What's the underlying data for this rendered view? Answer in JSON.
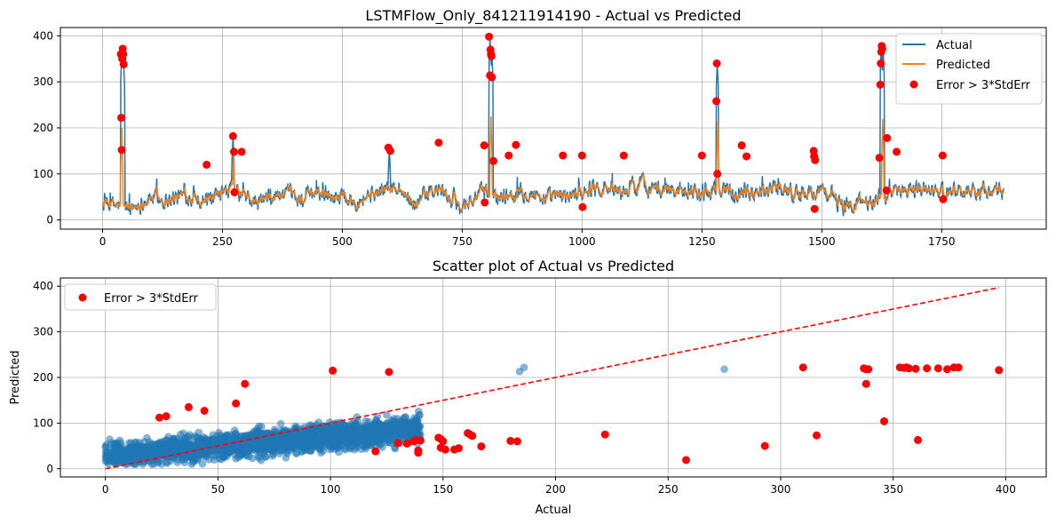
{
  "chart_data": [
    {
      "type": "line",
      "title": "LSTMFlow_Only_841211914190 - Actual vs Predicted",
      "xlabel": "",
      "ylabel": "",
      "xlim": [
        -88,
        1968
      ],
      "ylim": [
        -20,
        418
      ],
      "xticks": [
        0,
        250,
        500,
        750,
        1000,
        1250,
        1500,
        1750
      ],
      "yticks": [
        0,
        100,
        200,
        300,
        400
      ],
      "grid": true,
      "legend_position": "upper right",
      "series": [
        {
          "name": "Actual",
          "color": "#1f77b4"
        },
        {
          "name": "Predicted",
          "color": "#ff7f0e"
        },
        {
          "name": "Error > 3*StdErr",
          "color": "#ff0000",
          "marker": "circle"
        }
      ],
      "series_length": 1880,
      "baseline_segments": [
        [
          0,
          35
        ],
        [
          60,
          25
        ],
        [
          100,
          50
        ],
        [
          140,
          45
        ],
        [
          180,
          55
        ],
        [
          230,
          40
        ],
        [
          270,
          65
        ],
        [
          320,
          35
        ],
        [
          370,
          55
        ],
        [
          410,
          45
        ],
        [
          460,
          60
        ],
        [
          520,
          45
        ],
        [
          560,
          55
        ],
        [
          600,
          70
        ],
        [
          650,
          40
        ],
        [
          700,
          65
        ],
        [
          750,
          30
        ],
        [
          790,
          60
        ],
        [
          830,
          50
        ],
        [
          880,
          65
        ],
        [
          930,
          45
        ],
        [
          980,
          55
        ],
        [
          1030,
          75
        ],
        [
          1080,
          60
        ],
        [
          1120,
          80
        ],
        [
          1170,
          65
        ],
        [
          1220,
          70
        ],
        [
          1260,
          55
        ],
        [
          1300,
          70
        ],
        [
          1350,
          60
        ],
        [
          1400,
          75
        ],
        [
          1450,
          55
        ],
        [
          1500,
          65
        ],
        [
          1550,
          30
        ],
        [
          1600,
          45
        ],
        [
          1650,
          60
        ],
        [
          1700,
          70
        ],
        [
          1750,
          60
        ],
        [
          1800,
          65
        ],
        [
          1880,
          60
        ]
      ],
      "actual_spikes": [
        [
          40,
          360
        ],
        [
          42,
          370
        ],
        [
          44,
          340
        ],
        [
          272,
          180
        ],
        [
          598,
          155
        ],
        [
          808,
          395
        ],
        [
          812,
          360
        ],
        [
          1282,
          340
        ],
        [
          1624,
          375
        ],
        [
          1628,
          365
        ]
      ],
      "predicted_spikes": [
        [
          40,
          200
        ],
        [
          273,
          140
        ],
        [
          810,
          225
        ],
        [
          1283,
          215
        ],
        [
          1627,
          220
        ]
      ],
      "error_points": [
        [
          38,
          360
        ],
        [
          39,
          222
        ],
        [
          40,
          152
        ],
        [
          41,
          350
        ],
        [
          42,
          372
        ],
        [
          43,
          360
        ],
        [
          44,
          338
        ],
        [
          217,
          120
        ],
        [
          272,
          182
        ],
        [
          274,
          148
        ],
        [
          275,
          60
        ],
        [
          290,
          148
        ],
        [
          596,
          157
        ],
        [
          600,
          150
        ],
        [
          701,
          168
        ],
        [
          796,
          162
        ],
        [
          797,
          38
        ],
        [
          806,
          398
        ],
        [
          808,
          314
        ],
        [
          809,
          370
        ],
        [
          810,
          360
        ],
        [
          811,
          356
        ],
        [
          812,
          310
        ],
        [
          815,
          128
        ],
        [
          847,
          140
        ],
        [
          862,
          163
        ],
        [
          960,
          140
        ],
        [
          1000,
          140
        ],
        [
          1001,
          28
        ],
        [
          1087,
          140
        ],
        [
          1250,
          140
        ],
        [
          1280,
          258
        ],
        [
          1281,
          340
        ],
        [
          1282,
          100
        ],
        [
          1333,
          162
        ],
        [
          1343,
          138
        ],
        [
          1483,
          150
        ],
        [
          1484,
          138
        ],
        [
          1485,
          24
        ],
        [
          1486,
          130
        ],
        [
          1620,
          135
        ],
        [
          1622,
          294
        ],
        [
          1623,
          340
        ],
        [
          1624,
          365
        ],
        [
          1625,
          378
        ],
        [
          1626,
          372
        ],
        [
          1635,
          64
        ],
        [
          1636,
          178
        ],
        [
          1656,
          148
        ],
        [
          1752,
          140
        ],
        [
          1753,
          45
        ]
      ]
    },
    {
      "type": "scatter",
      "title": "Scatter plot of Actual vs Predicted",
      "xlabel": "Actual",
      "ylabel": "Predicted",
      "xlim": [
        -20,
        418
      ],
      "ylim": [
        -18,
        418
      ],
      "xticks": [
        0,
        50,
        100,
        150,
        200,
        250,
        300,
        350,
        400
      ],
      "yticks": [
        0,
        100,
        200,
        300,
        400
      ],
      "grid": true,
      "legend_position": "upper left",
      "series": [
        {
          "name": "",
          "color": "#1f77b4",
          "opacity": 0.55,
          "marker": "circle"
        },
        {
          "name": "Error > 3*StdErr",
          "color": "#ff0000",
          "marker": "circle"
        },
        {
          "name": "",
          "color": "#ff0000",
          "style": "dashed",
          "line": [
            [
              0,
              0
            ],
            [
              397,
              397
            ]
          ]
        }
      ],
      "cloud": {
        "x_range": [
          0,
          140
        ],
        "y_range": [
          10,
          135
        ],
        "count": 1880
      },
      "blue_outliers": [
        [
          184,
          213
        ],
        [
          186,
          222
        ],
        [
          275,
          218
        ],
        [
          116,
          90
        ],
        [
          128,
          95
        ],
        [
          125,
          118
        ],
        [
          138,
          98
        ]
      ],
      "red_points": [
        [
          24,
          112
        ],
        [
          27,
          115
        ],
        [
          37,
          135
        ],
        [
          44,
          127
        ],
        [
          58,
          143
        ],
        [
          62,
          186
        ],
        [
          101,
          215
        ],
        [
          126,
          212
        ],
        [
          120,
          38
        ],
        [
          130,
          56
        ],
        [
          134,
          55
        ],
        [
          137,
          60
        ],
        [
          138,
          63
        ],
        [
          139,
          40
        ],
        [
          139,
          35
        ],
        [
          140,
          62
        ],
        [
          148,
          68
        ],
        [
          149,
          65
        ],
        [
          149,
          46
        ],
        [
          150,
          60
        ],
        [
          151,
          42
        ],
        [
          155,
          42
        ],
        [
          157,
          45
        ],
        [
          161,
          78
        ],
        [
          162,
          75
        ],
        [
          163,
          72
        ],
        [
          167,
          49
        ],
        [
          180,
          61
        ],
        [
          183,
          60
        ],
        [
          222,
          75
        ],
        [
          258,
          19
        ],
        [
          293,
          50
        ],
        [
          310,
          222
        ],
        [
          316,
          73
        ],
        [
          337,
          220
        ],
        [
          338,
          218
        ],
        [
          338,
          186
        ],
        [
          339,
          218
        ],
        [
          346,
          104
        ],
        [
          353,
          222
        ],
        [
          355,
          221
        ],
        [
          356,
          222
        ],
        [
          357,
          220
        ],
        [
          360,
          219
        ],
        [
          361,
          63
        ],
        [
          365,
          220
        ],
        [
          370,
          220
        ],
        [
          374,
          218
        ],
        [
          377,
          222
        ],
        [
          379,
          222
        ],
        [
          397,
          216
        ]
      ]
    }
  ]
}
